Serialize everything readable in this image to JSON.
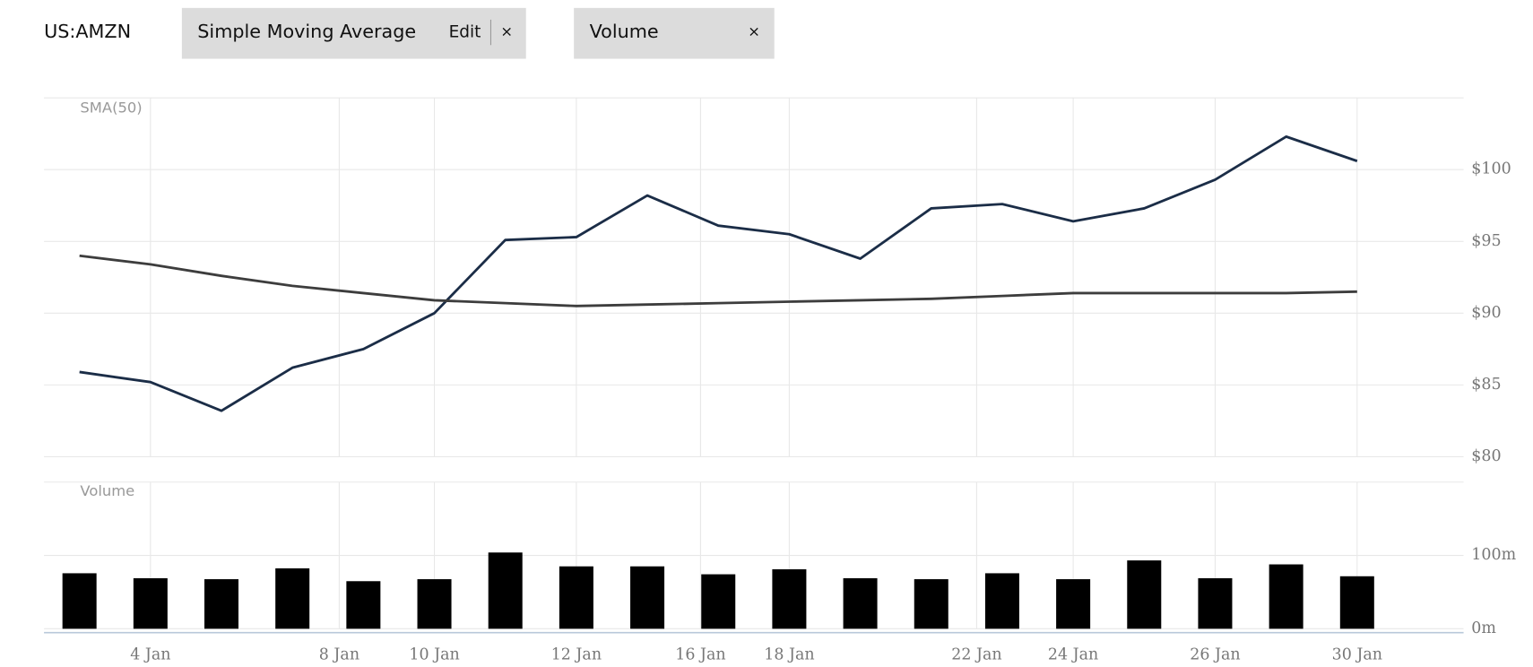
{
  "header": {
    "symbol": "US:AMZN",
    "indicators": [
      {
        "label": "Simple Moving Average",
        "edit": "Edit",
        "close": "×"
      },
      {
        "label": "Volume",
        "close": "×"
      }
    ]
  },
  "chart_data": [
    {
      "type": "line",
      "title": "SMA(50)",
      "xlim": [
        -0.5,
        19.5
      ],
      "ylim": [
        80,
        105
      ],
      "yticks": [
        {
          "value": 80,
          "label": "$80"
        },
        {
          "value": 85,
          "label": "$85"
        },
        {
          "value": 90,
          "label": "$90"
        },
        {
          "value": 95,
          "label": "$95"
        },
        {
          "value": 100,
          "label": "$100"
        }
      ],
      "grid": true,
      "series": [
        {
          "color": "#1b2d47",
          "values": [
            85.9,
            85.2,
            83.2,
            86.2,
            87.5,
            90.0,
            95.1,
            95.3,
            98.2,
            96.1,
            95.5,
            93.8,
            97.3,
            97.6,
            96.4,
            97.3,
            99.3,
            102.3,
            100.6
          ]
        },
        {
          "color": "#3d3d3d",
          "values": [
            94.0,
            93.4,
            92.6,
            91.9,
            91.4,
            90.9,
            90.7,
            90.5,
            90.6,
            90.7,
            90.8,
            90.9,
            91.0,
            91.2,
            91.4,
            91.4,
            91.4,
            91.4,
            91.5
          ]
        }
      ]
    },
    {
      "type": "bar",
      "title": "Volume",
      "xlim": [
        -0.5,
        19.5
      ],
      "xticks": [
        {
          "value": 1,
          "label": "4 Jan"
        },
        {
          "value": 3.66,
          "label": "8 Jan"
        },
        {
          "value": 5,
          "label": "10 Jan"
        },
        {
          "value": 7,
          "label": "12 Jan"
        },
        {
          "value": 8.75,
          "label": "16 Jan"
        },
        {
          "value": 10,
          "label": "18 Jan"
        },
        {
          "value": 12.64,
          "label": "22 Jan"
        },
        {
          "value": 14,
          "label": "24 Jan"
        },
        {
          "value": 16,
          "label": "26 Jan"
        },
        {
          "value": 18,
          "label": "30 Jan"
        }
      ],
      "ylim": [
        0,
        200
      ],
      "yticks": [
        {
          "value": 0,
          "label": "0m"
        },
        {
          "value": 100,
          "label": "100m"
        }
      ],
      "grid": true,
      "color": "#000000",
      "values": [
        75.7,
        68.9,
        67.6,
        82.4,
        64.9,
        67.6,
        104,
        85.1,
        85.1,
        74.3,
        81.1,
        68.9,
        67.6,
        75.7,
        67.6,
        93.2,
        68.9,
        87.8,
        71.6
      ]
    }
  ]
}
